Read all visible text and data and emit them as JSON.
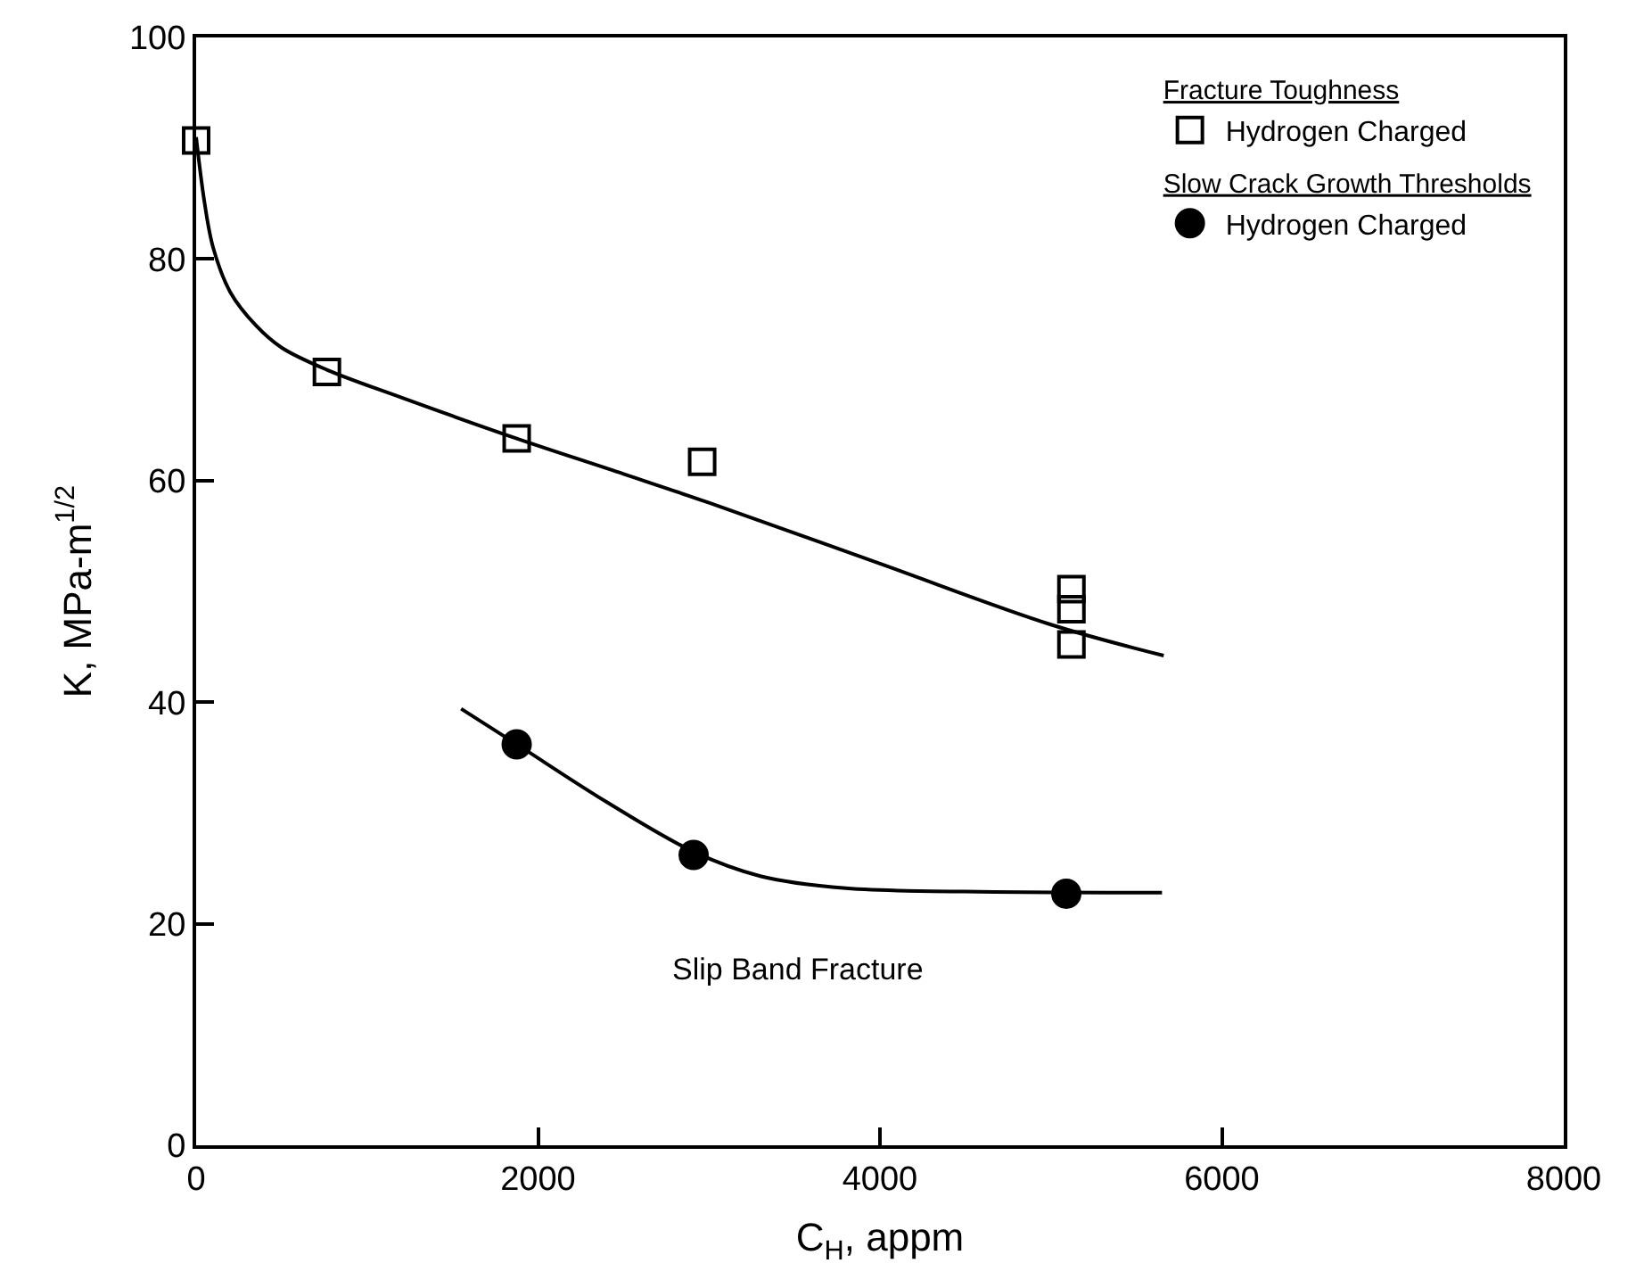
{
  "chart_data": {
    "type": "scatter",
    "xlabel": "C$_{H}$, appm",
    "ylabel": "K, MPa-m$^{1/2}$",
    "xlim": [
      0,
      8000
    ],
    "xticks": [
      0,
      2000,
      4000,
      6000,
      8000
    ],
    "ylim": [
      0,
      100
    ],
    "yticks": [
      0,
      20,
      40,
      60,
      80,
      100
    ],
    "grid": false,
    "legend": "top right",
    "annotations": [
      "Fracture Toughness",
      "Slow Crack Growth Thresholds",
      "Slip Band Fracture"
    ],
    "series": [
      {
        "type": "line",
        "marker": "none",
        "color": "#000000",
        "x": [
          0,
          50,
          100,
          200,
          350,
          500,
          765,
          1200,
          1875,
          2500,
          3000,
          4000,
          5000,
          5660
        ],
        "values": [
          91,
          85,
          81,
          77,
          74,
          72,
          70,
          67.5,
          63.8,
          60.6,
          58,
          52.5,
          47,
          44.2
        ]
      },
      {
        "type": "line",
        "marker": "none",
        "color": "#000000",
        "x": [
          1550,
          1875,
          2400,
          2910,
          3300,
          3800,
          4500,
          5650
        ],
        "values": [
          39.4,
          36.2,
          31,
          26.5,
          24.3,
          23.2,
          22.9,
          22.8
        ]
      },
      {
        "name": "Hydrogen Charged",
        "marker": "square",
        "color": "#000000",
        "x": [
          0,
          765,
          1875,
          2960,
          5120,
          5120,
          5120
        ],
        "values": [
          90.7,
          69.8,
          63.8,
          61.7,
          50.2,
          48.4,
          45.2
        ]
      },
      {
        "name": "Hydrogen Charged",
        "marker": "circle",
        "color": "#000000",
        "x": [
          1875,
          2910,
          5090
        ],
        "values": [
          36.2,
          26.2,
          22.7
        ]
      }
    ]
  }
}
